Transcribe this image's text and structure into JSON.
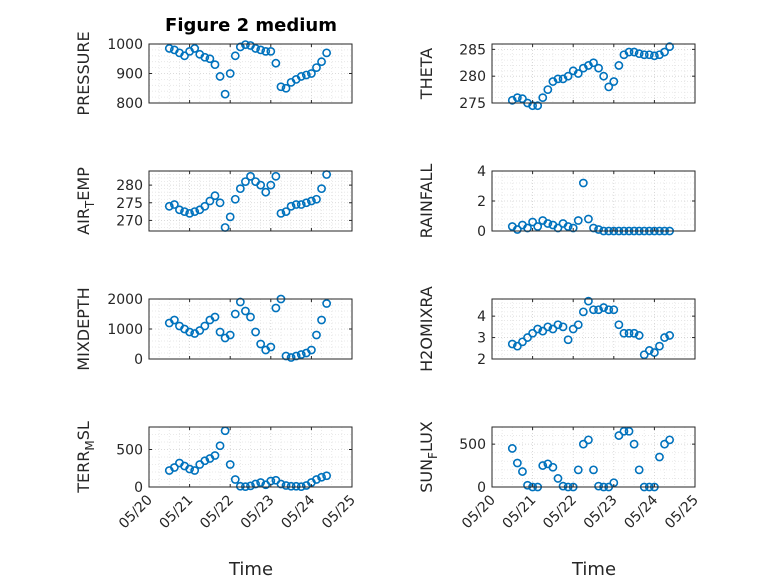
{
  "figure": {
    "title": "Figure 2 medium",
    "xlabel": "Time",
    "marker_color": "#0072BD"
  },
  "chart_data": [
    {
      "type": "scatter",
      "ylabel": "PRESSURE",
      "xlim": [
        "05/20",
        "05/25"
      ],
      "ylim": [
        800,
        1000
      ],
      "yticks": [
        "800",
        "900",
        "1000"
      ],
      "grid": "on",
      "x": [
        "05/20 12:00",
        "05/20 15:00",
        "05/20 18:00",
        "05/20 21:00",
        "05/21 00:00",
        "05/21 03:00",
        "05/21 06:00",
        "05/21 09:00",
        "05/21 12:00",
        "05/21 15:00",
        "05/21 18:00",
        "05/21 21:00",
        "05/22 00:00",
        "05/22 03:00",
        "05/22 06:00",
        "05/22 09:00",
        "05/22 12:00",
        "05/22 15:00",
        "05/22 18:00",
        "05/22 21:00",
        "05/23 00:00",
        "05/23 03:00",
        "05/23 06:00",
        "05/23 09:00",
        "05/23 12:00",
        "05/23 15:00",
        "05/23 18:00",
        "05/23 21:00",
        "05/24 00:00",
        "05/24 03:00",
        "05/24 06:00",
        "05/24 09:00"
      ],
      "y": [
        985,
        980,
        970,
        960,
        975,
        985,
        965,
        955,
        950,
        930,
        890,
        830,
        900,
        960,
        990,
        998,
        995,
        985,
        980,
        975,
        975,
        935,
        855,
        850,
        870,
        880,
        890,
        895,
        900,
        920,
        940,
        970
      ]
    },
    {
      "type": "scatter",
      "ylabel": "THETA",
      "xlim": [
        "05/20",
        "05/25"
      ],
      "ylim": [
        275,
        286
      ],
      "yticks": [
        "275",
        "280",
        "285"
      ],
      "grid": "on",
      "x": [
        "05/20 12:00",
        "05/20 15:00",
        "05/20 18:00",
        "05/20 21:00",
        "05/21 00:00",
        "05/21 03:00",
        "05/21 06:00",
        "05/21 09:00",
        "05/21 12:00",
        "05/21 15:00",
        "05/21 18:00",
        "05/21 21:00",
        "05/22 00:00",
        "05/22 03:00",
        "05/22 06:00",
        "05/22 09:00",
        "05/22 12:00",
        "05/22 15:00",
        "05/22 18:00",
        "05/22 21:00",
        "05/23 00:00",
        "05/23 03:00",
        "05/23 06:00",
        "05/23 09:00",
        "05/23 12:00",
        "05/23 15:00",
        "05/23 18:00",
        "05/23 21:00",
        "05/24 00:00",
        "05/24 03:00",
        "05/24 06:00",
        "05/24 09:00"
      ],
      "y": [
        275.5,
        276,
        275.8,
        275,
        274.5,
        274.5,
        276,
        277.5,
        279,
        279.5,
        279.5,
        280,
        281,
        280.5,
        281.5,
        282,
        282.5,
        281.5,
        280,
        278,
        279,
        282,
        284,
        284.5,
        284.5,
        284.2,
        284,
        284,
        283.8,
        284,
        284.5,
        285.5
      ]
    },
    {
      "type": "scatter",
      "ylabel": "AIR_TEMP",
      "xlim": [
        "05/20",
        "05/25"
      ],
      "ylim": [
        267,
        284
      ],
      "yticks": [
        "270",
        "275",
        "280"
      ],
      "grid": "on",
      "x": [
        "05/20 12:00",
        "05/20 15:00",
        "05/20 18:00",
        "05/20 21:00",
        "05/21 00:00",
        "05/21 03:00",
        "05/21 06:00",
        "05/21 09:00",
        "05/21 12:00",
        "05/21 15:00",
        "05/21 18:00",
        "05/21 21:00",
        "05/22 00:00",
        "05/22 03:00",
        "05/22 06:00",
        "05/22 09:00",
        "05/22 12:00",
        "05/22 15:00",
        "05/22 18:00",
        "05/22 21:00",
        "05/23 00:00",
        "05/23 03:00",
        "05/23 06:00",
        "05/23 09:00",
        "05/23 12:00",
        "05/23 15:00",
        "05/23 18:00",
        "05/23 21:00",
        "05/24 00:00",
        "05/24 03:00",
        "05/24 06:00",
        "05/24 09:00"
      ],
      "y": [
        274,
        274.5,
        273,
        272.5,
        272,
        272.5,
        273,
        274,
        275.5,
        277,
        275,
        268,
        271,
        276,
        279,
        281,
        282.5,
        281,
        280,
        278,
        280,
        282.5,
        272,
        272.5,
        274,
        274.5,
        274.5,
        275,
        275.5,
        276,
        279,
        283
      ]
    },
    {
      "type": "scatter",
      "ylabel": "RAINFALL",
      "xlim": [
        "05/20",
        "05/25"
      ],
      "ylim": [
        0,
        4
      ],
      "yticks": [
        "0",
        "2",
        "4"
      ],
      "grid": "on",
      "x": [
        "05/20 12:00",
        "05/20 15:00",
        "05/20 18:00",
        "05/20 21:00",
        "05/21 00:00",
        "05/21 03:00",
        "05/21 06:00",
        "05/21 09:00",
        "05/21 12:00",
        "05/21 15:00",
        "05/21 18:00",
        "05/21 21:00",
        "05/22 00:00",
        "05/22 03:00",
        "05/22 06:00",
        "05/22 09:00",
        "05/22 12:00",
        "05/22 15:00",
        "05/22 18:00",
        "05/22 21:00",
        "05/23 00:00",
        "05/23 03:00",
        "05/23 06:00",
        "05/23 09:00",
        "05/23 12:00",
        "05/23 15:00",
        "05/23 18:00",
        "05/23 21:00",
        "05/24 00:00",
        "05/24 03:00",
        "05/24 06:00",
        "05/24 09:00"
      ],
      "y": [
        0.3,
        0.1,
        0.4,
        0.2,
        0.6,
        0.3,
        0.7,
        0.5,
        0.4,
        0.2,
        0.5,
        0.3,
        0.2,
        0.7,
        3.2,
        0.8,
        0.2,
        0.1,
        0,
        0,
        0,
        0,
        0,
        0,
        0,
        0,
        0,
        0,
        0,
        0,
        0,
        0
      ]
    },
    {
      "type": "scatter",
      "ylabel": "MIXDEPTH",
      "xlim": [
        "05/20",
        "05/25"
      ],
      "ylim": [
        0,
        2000
      ],
      "yticks": [
        "0",
        "1000",
        "2000"
      ],
      "grid": "on",
      "x": [
        "05/20 12:00",
        "05/20 15:00",
        "05/20 18:00",
        "05/20 21:00",
        "05/21 00:00",
        "05/21 03:00",
        "05/21 06:00",
        "05/21 09:00",
        "05/21 12:00",
        "05/21 15:00",
        "05/21 18:00",
        "05/21 21:00",
        "05/22 00:00",
        "05/22 03:00",
        "05/22 06:00",
        "05/22 09:00",
        "05/22 12:00",
        "05/22 15:00",
        "05/22 18:00",
        "05/22 21:00",
        "05/23 00:00",
        "05/23 03:00",
        "05/23 06:00",
        "05/23 09:00",
        "05/23 12:00",
        "05/23 15:00",
        "05/23 18:00",
        "05/23 21:00",
        "05/24 00:00",
        "05/24 03:00",
        "05/24 06:00",
        "05/24 09:00"
      ],
      "y": [
        1200,
        1300,
        1100,
        1000,
        900,
        850,
        950,
        1100,
        1300,
        1400,
        900,
        700,
        800,
        1500,
        1900,
        1600,
        1400,
        900,
        500,
        300,
        400,
        1700,
        2000,
        100,
        50,
        100,
        150,
        200,
        300,
        800,
        1300,
        1850
      ]
    },
    {
      "type": "scatter",
      "ylabel": "H2OMIXRA",
      "xlim": [
        "05/20",
        "05/25"
      ],
      "ylim": [
        2,
        4.8
      ],
      "yticks": [
        "2",
        "3",
        "4"
      ],
      "grid": "on",
      "x": [
        "05/20 12:00",
        "05/20 15:00",
        "05/20 18:00",
        "05/20 21:00",
        "05/21 00:00",
        "05/21 03:00",
        "05/21 06:00",
        "05/21 09:00",
        "05/21 12:00",
        "05/21 15:00",
        "05/21 18:00",
        "05/21 21:00",
        "05/22 00:00",
        "05/22 03:00",
        "05/22 06:00",
        "05/22 09:00",
        "05/22 12:00",
        "05/22 15:00",
        "05/22 18:00",
        "05/22 21:00",
        "05/23 00:00",
        "05/23 03:00",
        "05/23 06:00",
        "05/23 09:00",
        "05/23 12:00",
        "05/23 15:00",
        "05/23 18:00",
        "05/23 21:00",
        "05/24 00:00",
        "05/24 03:00",
        "05/24 06:00",
        "05/24 09:00"
      ],
      "y": [
        2.7,
        2.6,
        2.8,
        3,
        3.2,
        3.4,
        3.3,
        3.5,
        3.4,
        3.6,
        3.5,
        2.9,
        3.4,
        3.6,
        4.2,
        4.7,
        4.3,
        4.3,
        4.4,
        4.3,
        4.3,
        3.6,
        3.2,
        3.2,
        3.2,
        3.1,
        2.2,
        2.4,
        2.3,
        2.6,
        3,
        3.1
      ]
    },
    {
      "type": "scatter",
      "ylabel": "TERR_MSL",
      "xlim": [
        "05/20",
        "05/25"
      ],
      "ylim": [
        0,
        800
      ],
      "yticks": [
        "0",
        "500"
      ],
      "grid": "on",
      "x": [
        "05/20 12:00",
        "05/20 15:00",
        "05/20 18:00",
        "05/20 21:00",
        "05/21 00:00",
        "05/21 03:00",
        "05/21 06:00",
        "05/21 09:00",
        "05/21 12:00",
        "05/21 15:00",
        "05/21 18:00",
        "05/21 21:00",
        "05/22 00:00",
        "05/22 03:00",
        "05/22 06:00",
        "05/22 09:00",
        "05/22 12:00",
        "05/22 15:00",
        "05/22 18:00",
        "05/22 21:00",
        "05/23 00:00",
        "05/23 03:00",
        "05/23 06:00",
        "05/23 09:00",
        "05/23 12:00",
        "05/23 15:00",
        "05/23 18:00",
        "05/23 21:00",
        "05/24 00:00",
        "05/24 03:00",
        "05/24 06:00",
        "05/24 09:00"
      ],
      "y": [
        220,
        260,
        320,
        280,
        240,
        220,
        300,
        350,
        380,
        420,
        550,
        750,
        300,
        100,
        10,
        5,
        15,
        40,
        60,
        30,
        80,
        90,
        40,
        20,
        10,
        10,
        5,
        20,
        60,
        100,
        130,
        150
      ]
    },
    {
      "type": "scatter",
      "ylabel": "SUN_FLUX",
      "xlim": [
        "05/20",
        "05/25"
      ],
      "ylim": [
        0,
        700
      ],
      "yticks": [
        "0",
        "500"
      ],
      "grid": "on",
      "x": [
        "05/20 12:00",
        "05/20 15:00",
        "05/20 18:00",
        "05/20 21:00",
        "05/21 00:00",
        "05/21 03:00",
        "05/21 06:00",
        "05/21 09:00",
        "05/21 12:00",
        "05/21 15:00",
        "05/21 18:00",
        "05/21 21:00",
        "05/22 00:00",
        "05/22 03:00",
        "05/22 06:00",
        "05/22 09:00",
        "05/22 12:00",
        "05/22 15:00",
        "05/22 18:00",
        "05/22 21:00",
        "05/23 00:00",
        "05/23 03:00",
        "05/23 06:00",
        "05/23 09:00",
        "05/23 12:00",
        "05/23 15:00",
        "05/23 18:00",
        "05/23 21:00",
        "05/24 00:00",
        "05/24 03:00",
        "05/24 06:00",
        "05/24 09:00"
      ],
      "y": [
        450,
        280,
        180,
        20,
        0,
        0,
        250,
        270,
        230,
        100,
        10,
        0,
        0,
        200,
        500,
        550,
        200,
        10,
        0,
        0,
        50,
        600,
        650,
        650,
        500,
        200,
        0,
        0,
        0,
        350,
        500,
        550
      ]
    }
  ]
}
